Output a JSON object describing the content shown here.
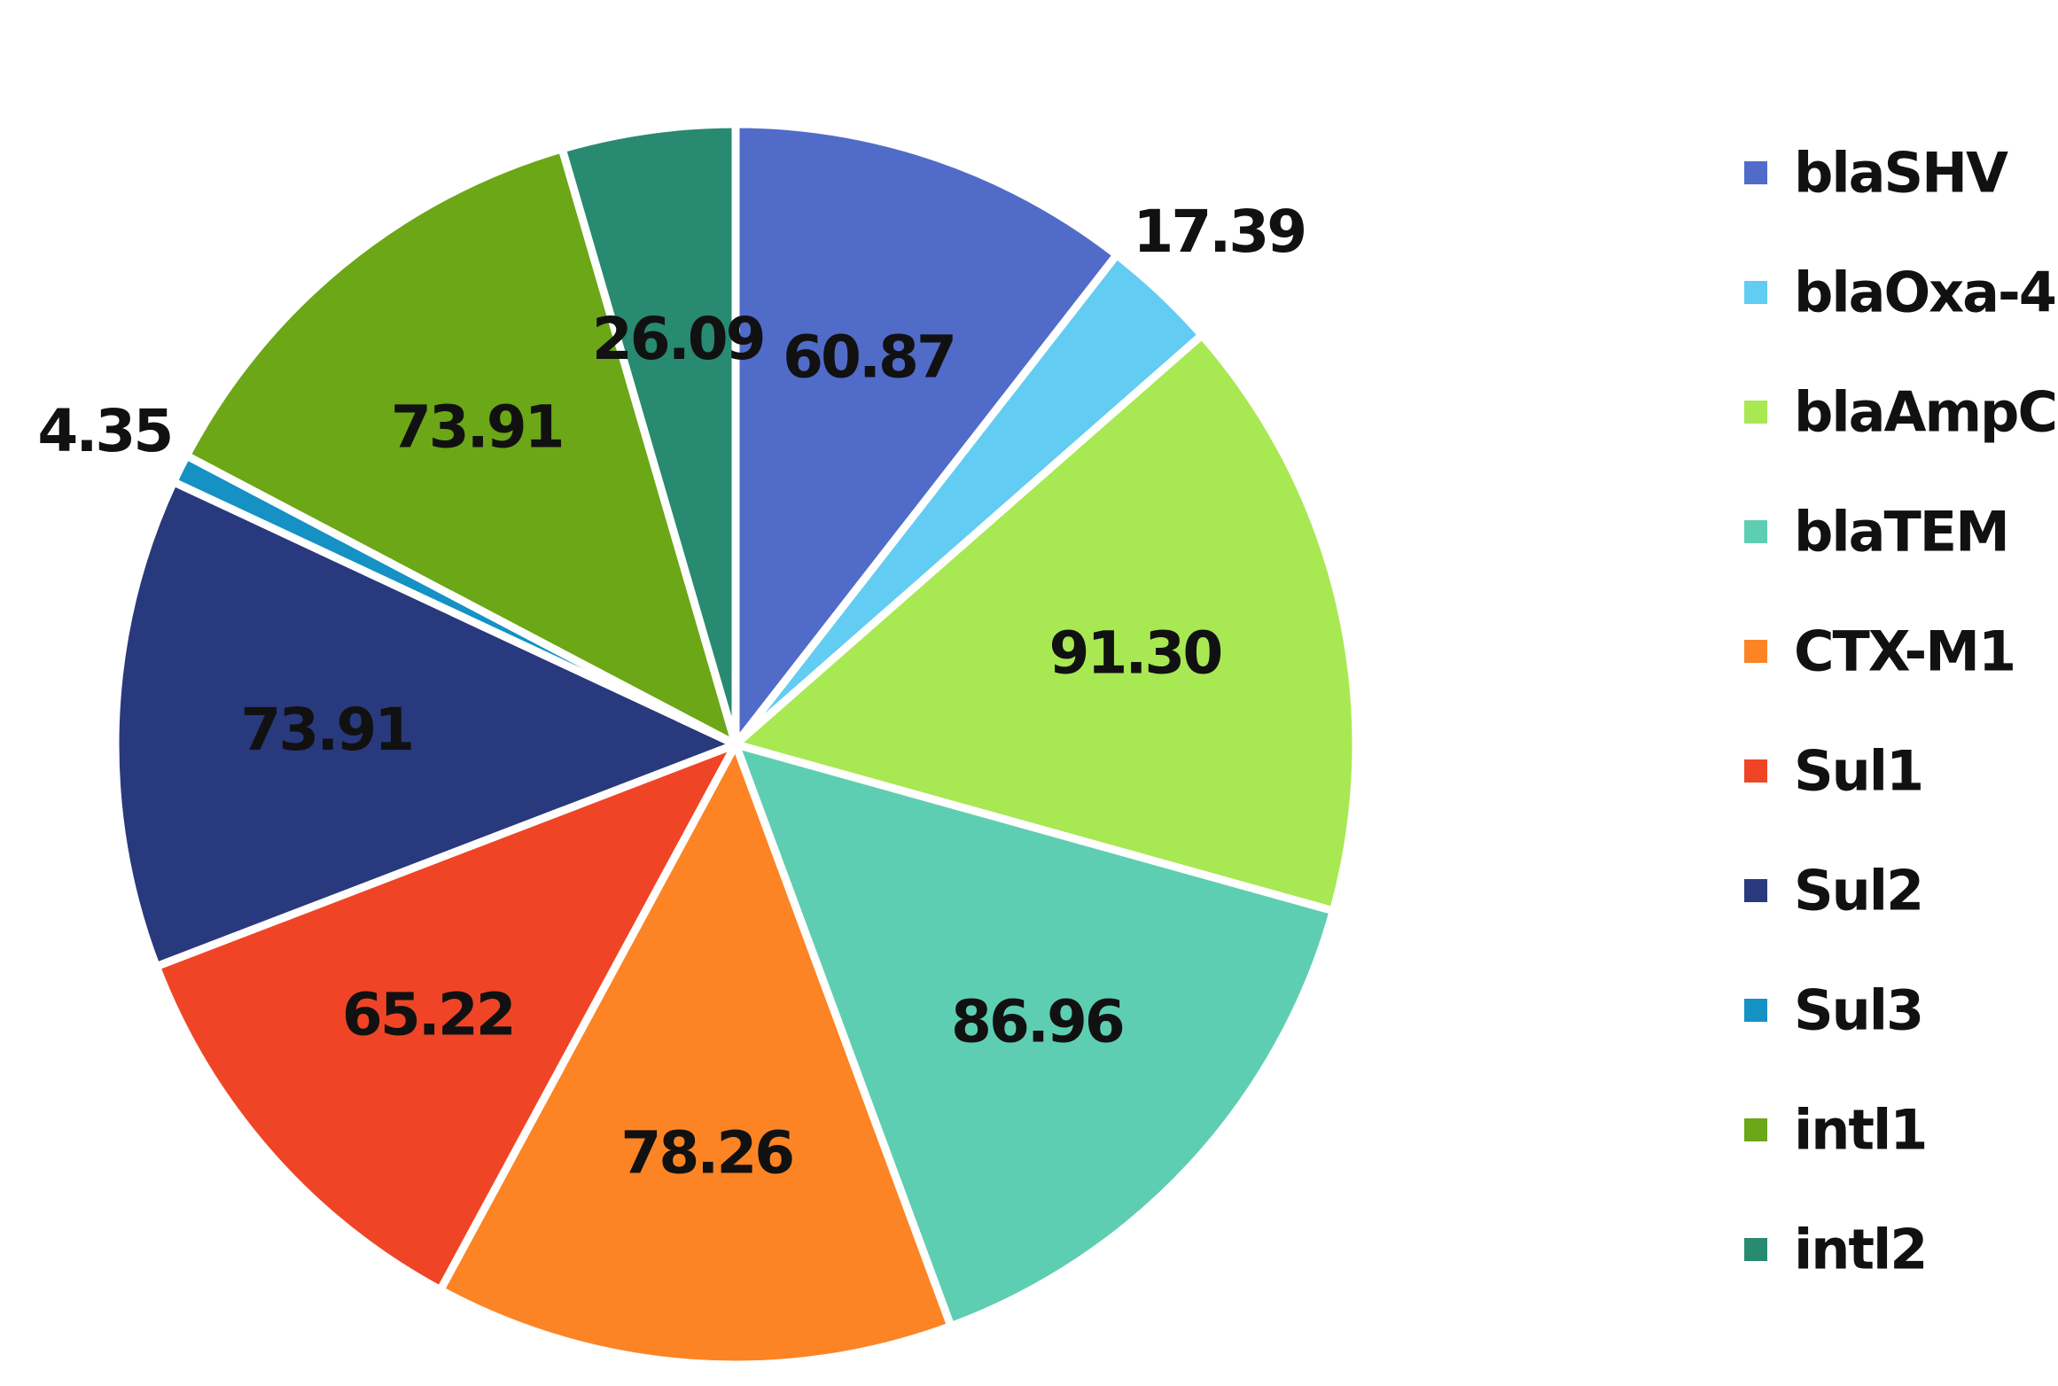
{
  "chart_data": {
    "type": "pie",
    "title": "",
    "legend_position": "right",
    "slices": [
      {
        "name": "blaSHV",
        "value": 60.87,
        "label": "60.87",
        "color": "#516BC8"
      },
      {
        "name": "blaOxa-4",
        "value": 17.39,
        "label": "17.39",
        "color": "#62CCF2"
      },
      {
        "name": "blaAmpC",
        "value": 91.3,
        "label": "91.30",
        "color": "#A8E852"
      },
      {
        "name": "blaTEM",
        "value": 86.96,
        "label": "86.96",
        "color": "#5ECEB2"
      },
      {
        "name": "CTX-M1",
        "value": 78.26,
        "label": "78.26",
        "color": "#FC8424"
      },
      {
        "name": "Sul1",
        "value": 65.22,
        "label": "65.22",
        "color": "#EF4526"
      },
      {
        "name": "Sul2",
        "value": 73.91,
        "label": "73.91",
        "color": "#29397D"
      },
      {
        "name": "Sul3",
        "value": 4.35,
        "label": "4.35",
        "color": "#1591C4"
      },
      {
        "name": "intl1",
        "value": 73.91,
        "label": "73.91",
        "color": "#6BA716"
      },
      {
        "name": "intl2",
        "value": 26.09,
        "label": "26.09",
        "color": "#288A70"
      }
    ]
  }
}
